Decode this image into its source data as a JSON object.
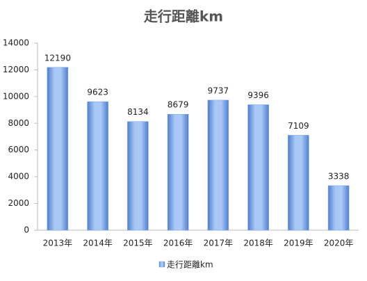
{
  "chart_data": {
    "type": "bar",
    "title": "走行距離km",
    "categories": [
      "2013年",
      "2014年",
      "2015年",
      "2016年",
      "2017年",
      "2018年",
      "2019年",
      "2020年"
    ],
    "series": [
      {
        "name": "走行距離km",
        "color": "#7aa6e8",
        "values": [
          12190,
          9623,
          8134,
          8679,
          9737,
          9396,
          7109,
          3338
        ]
      }
    ],
    "ylim": [
      0,
      14000
    ],
    "yticks": [
      0,
      2000,
      4000,
      6000,
      8000,
      10000,
      12000,
      14000
    ],
    "grid": false,
    "legend": "bottom"
  }
}
